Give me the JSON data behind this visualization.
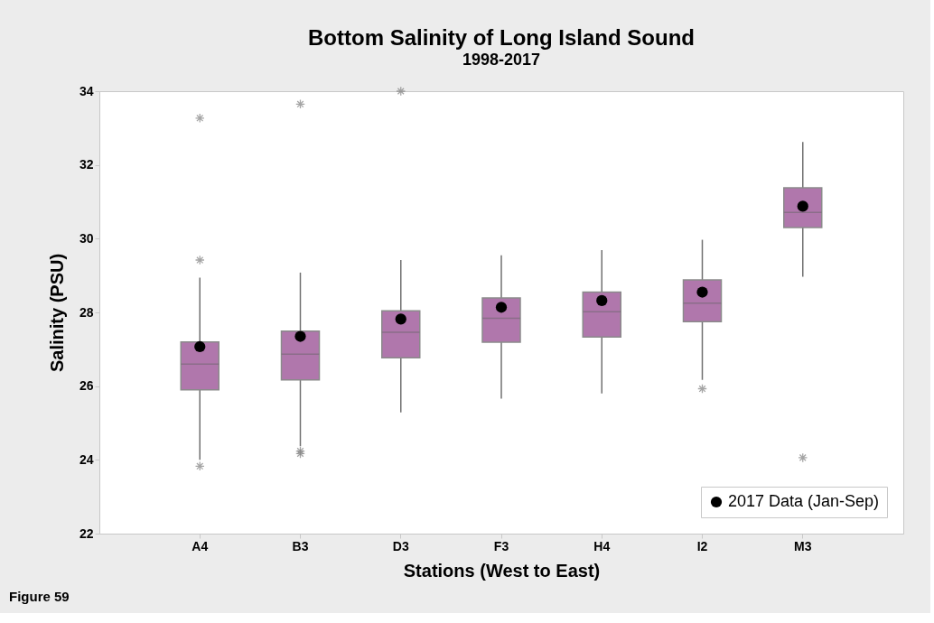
{
  "chart_data": {
    "type": "box",
    "title": "Bottom Salinity of Long Island Sound",
    "subtitle": "1998-2017",
    "xlabel": "Stations (West to East)",
    "ylabel": "Salinity (PSU)",
    "categories": [
      "A4",
      "B3",
      "D3",
      "F3",
      "H4",
      "I2",
      "M3"
    ],
    "ylim": [
      22,
      34
    ],
    "yticks": [
      22,
      24,
      26,
      28,
      30,
      32,
      34
    ],
    "grid": false,
    "legend": "bottom right",
    "color": "#b077ac",
    "boxes": [
      {
        "low": 24.0,
        "q1": 25.9,
        "median": 26.6,
        "q3": 27.2,
        "high": 28.94,
        "outliers": [
          33.27,
          29.42,
          23.83
        ]
      },
      {
        "low": 24.37,
        "q1": 26.17,
        "median": 26.87,
        "q3": 27.49,
        "high": 29.08,
        "outliers": [
          33.65,
          24.24,
          24.17
        ]
      },
      {
        "low": 25.29,
        "q1": 26.77,
        "median": 27.46,
        "q3": 28.04,
        "high": 29.42,
        "outliers": [
          34.0
        ]
      },
      {
        "low": 25.66,
        "q1": 27.19,
        "median": 27.84,
        "q3": 28.39,
        "high": 29.55
      },
      {
        "low": 25.8,
        "q1": 27.33,
        "median": 28.02,
        "q3": 28.55,
        "high": 29.69
      },
      {
        "low": 26.17,
        "q1": 27.75,
        "median": 28.25,
        "q3": 28.88,
        "high": 29.97,
        "outliers": [
          25.93
        ]
      },
      {
        "low": 28.97,
        "q1": 30.3,
        "median": 30.71,
        "q3": 31.38,
        "high": 32.62,
        "outliers": [
          24.06
        ]
      }
    ],
    "series": [
      {
        "name": "2017 Data (Jan-Sep)",
        "type": "scatter",
        "color": "#000000",
        "marker": "circle",
        "x": [
          "A4",
          "B3",
          "D3",
          "F3",
          "H4",
          "I2",
          "M3"
        ],
        "values": [
          27.07,
          27.35,
          27.82,
          28.14,
          28.32,
          28.55,
          30.88
        ]
      }
    ],
    "annotations": [
      "Figure 59"
    ]
  }
}
